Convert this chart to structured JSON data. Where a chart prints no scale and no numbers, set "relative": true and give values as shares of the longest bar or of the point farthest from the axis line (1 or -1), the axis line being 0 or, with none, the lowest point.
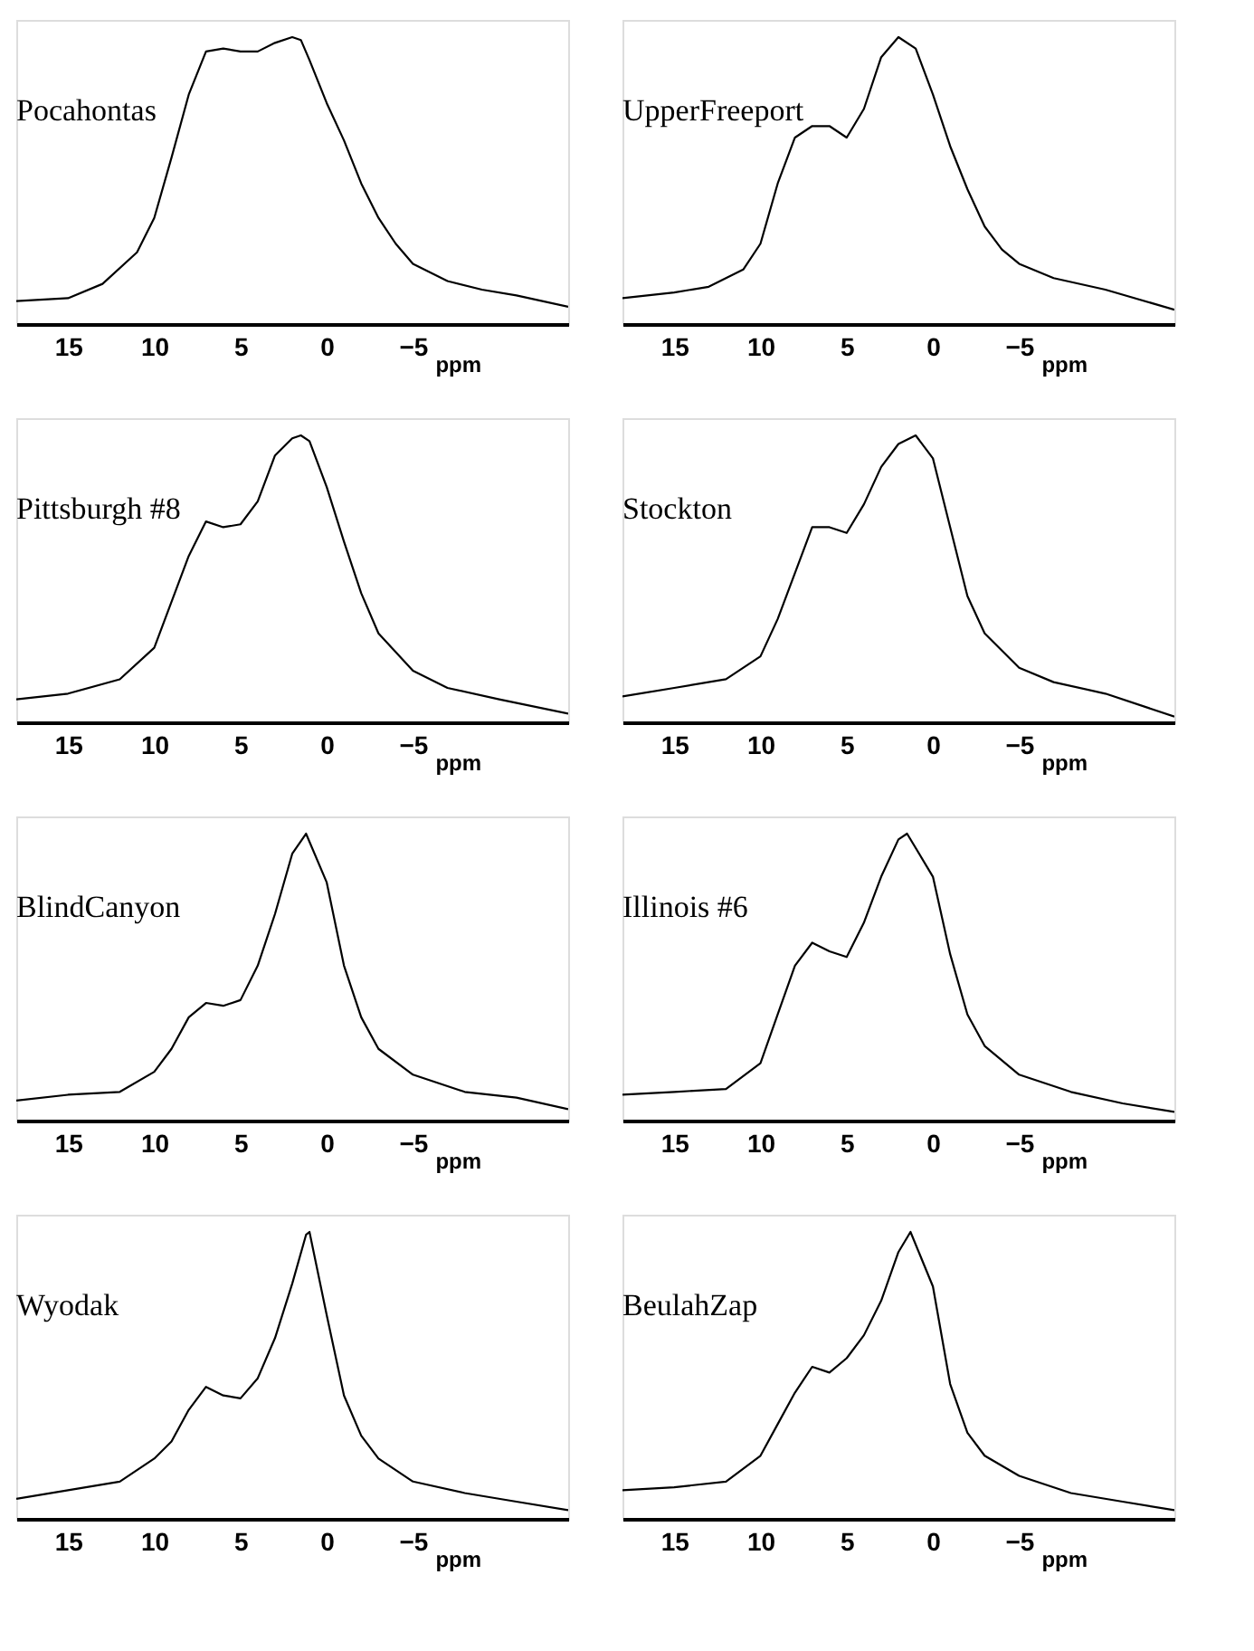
{
  "chart_data": [
    {
      "type": "line",
      "title": "Pocahontas",
      "relative": true,
      "xlabel": "ppm",
      "xlim": [
        18,
        -14
      ],
      "xticks": [
        15,
        10,
        5,
        0,
        -5
      ],
      "tick_labels": "x",
      "color": "#000000",
      "x": [
        18,
        15,
        13,
        11,
        10,
        9,
        8,
        7,
        6,
        5,
        4,
        3,
        2,
        1.5,
        1,
        0,
        -1,
        -2,
        -3,
        -4,
        -5,
        -7,
        -9,
        -11,
        -14
      ],
      "values": [
        0.08,
        0.09,
        0.14,
        0.25,
        0.37,
        0.58,
        0.8,
        0.95,
        0.96,
        0.95,
        0.95,
        0.98,
        1,
        0.99,
        0.92,
        0.77,
        0.64,
        0.49,
        0.37,
        0.28,
        0.21,
        0.15,
        0.12,
        0.1,
        0.06
      ]
    },
    {
      "type": "line",
      "title": "UpperFreeport",
      "relative": true,
      "xlabel": "ppm",
      "xlim": [
        18,
        -14
      ],
      "xticks": [
        15,
        10,
        5,
        0,
        -5
      ],
      "tick_labels": "x",
      "color": "#000000",
      "x": [
        18,
        15,
        13,
        11,
        10,
        9,
        8,
        7,
        6,
        5,
        4,
        3,
        2,
        1,
        0,
        -1,
        -2,
        -3,
        -4,
        -5,
        -7,
        -10,
        -14
      ],
      "values": [
        0.09,
        0.11,
        0.13,
        0.19,
        0.28,
        0.49,
        0.65,
        0.69,
        0.69,
        0.65,
        0.75,
        0.93,
        1,
        0.96,
        0.8,
        0.62,
        0.47,
        0.34,
        0.26,
        0.21,
        0.16,
        0.12,
        0.05
      ]
    },
    {
      "type": "line",
      "title": "Pittsburgh #8",
      "relative": true,
      "xlabel": "ppm",
      "xlim": [
        18,
        -14
      ],
      "xticks": [
        15,
        10,
        5,
        0,
        -5
      ],
      "tick_labels": "x",
      "color": "#000000",
      "x": [
        18,
        15,
        12,
        10,
        9,
        8,
        7,
        6,
        5,
        4,
        3,
        2,
        1.5,
        1,
        0,
        -1,
        -2,
        -3,
        -5,
        -7,
        -10,
        -14
      ],
      "values": [
        0.08,
        0.1,
        0.15,
        0.26,
        0.42,
        0.58,
        0.7,
        0.68,
        0.69,
        0.77,
        0.93,
        0.99,
        1,
        0.98,
        0.82,
        0.63,
        0.45,
        0.31,
        0.18,
        0.12,
        0.08,
        0.03
      ]
    },
    {
      "type": "line",
      "title": "Stockton",
      "relative": true,
      "xlabel": "ppm",
      "xlim": [
        18,
        -14
      ],
      "xticks": [
        15,
        10,
        5,
        0,
        -5
      ],
      "tick_labels": "x",
      "color": "#000000",
      "x": [
        18,
        15,
        12,
        10,
        9,
        8,
        7,
        6,
        5,
        4,
        3,
        2,
        1,
        0,
        -1,
        -2,
        -3,
        -5,
        -7,
        -10,
        -14
      ],
      "values": [
        0.09,
        0.12,
        0.15,
        0.23,
        0.36,
        0.52,
        0.68,
        0.68,
        0.66,
        0.76,
        0.89,
        0.97,
        1,
        0.92,
        0.68,
        0.44,
        0.31,
        0.19,
        0.14,
        0.1,
        0.02
      ]
    },
    {
      "type": "line",
      "title": "BlindCanyon",
      "relative": true,
      "xlabel": "ppm",
      "xlim": [
        18,
        -14
      ],
      "xticks": [
        15,
        10,
        5,
        0,
        -5
      ],
      "tick_labels": "x",
      "color": "#000000",
      "x": [
        18,
        15,
        12,
        10,
        9,
        8,
        7,
        6,
        5,
        4,
        3,
        2,
        1.2,
        0,
        -1,
        -2,
        -3,
        -5,
        -8,
        -11,
        -14
      ],
      "values": [
        0.07,
        0.09,
        0.1,
        0.17,
        0.25,
        0.36,
        0.41,
        0.4,
        0.42,
        0.54,
        0.72,
        0.93,
        1,
        0.83,
        0.54,
        0.36,
        0.25,
        0.16,
        0.1,
        0.08,
        0.04
      ]
    },
    {
      "type": "line",
      "title": "Illinois #6",
      "relative": true,
      "xlabel": "ppm",
      "xlim": [
        18,
        -14
      ],
      "xticks": [
        15,
        10,
        5,
        0,
        -5
      ],
      "tick_labels": "x",
      "color": "#000000",
      "x": [
        18,
        15,
        12,
        10,
        9,
        8,
        7,
        6,
        5,
        4,
        3,
        2,
        1.5,
        0,
        -1,
        -2,
        -3,
        -5,
        -8,
        -11,
        -14
      ],
      "values": [
        0.09,
        0.1,
        0.11,
        0.2,
        0.37,
        0.54,
        0.62,
        0.59,
        0.57,
        0.69,
        0.85,
        0.98,
        1,
        0.85,
        0.58,
        0.37,
        0.26,
        0.16,
        0.1,
        0.06,
        0.03
      ]
    },
    {
      "type": "line",
      "title": "Wyodak",
      "relative": true,
      "xlabel": "ppm",
      "xlim": [
        18,
        -14
      ],
      "xticks": [
        15,
        10,
        5,
        0,
        -5
      ],
      "tick_labels": "x",
      "color": "#000000",
      "x": [
        18,
        15,
        12,
        10,
        9,
        8,
        7,
        6,
        5,
        4,
        3,
        2,
        1.2,
        1,
        0,
        -1,
        -2,
        -3,
        -5,
        -8,
        -11,
        -14
      ],
      "values": [
        0.07,
        0.1,
        0.13,
        0.21,
        0.27,
        0.38,
        0.46,
        0.43,
        0.42,
        0.49,
        0.63,
        0.82,
        0.99,
        1,
        0.71,
        0.43,
        0.29,
        0.21,
        0.13,
        0.09,
        0.06,
        0.03
      ]
    },
    {
      "type": "line",
      "title": "BeulahZap",
      "relative": true,
      "xlabel": "ppm",
      "xlim": [
        18,
        -14
      ],
      "xticks": [
        15,
        10,
        5,
        0,
        -5
      ],
      "tick_labels": "x",
      "color": "#000000",
      "x": [
        18,
        15,
        12,
        10,
        9,
        8,
        7,
        6,
        5,
        4,
        3,
        2,
        1.3,
        0,
        -1,
        -2,
        -3,
        -5,
        -8,
        -11,
        -14
      ],
      "values": [
        0.1,
        0.11,
        0.13,
        0.22,
        0.33,
        0.44,
        0.53,
        0.51,
        0.56,
        0.64,
        0.76,
        0.93,
        1,
        0.81,
        0.47,
        0.3,
        0.22,
        0.15,
        0.09,
        0.06,
        0.03
      ]
    }
  ]
}
